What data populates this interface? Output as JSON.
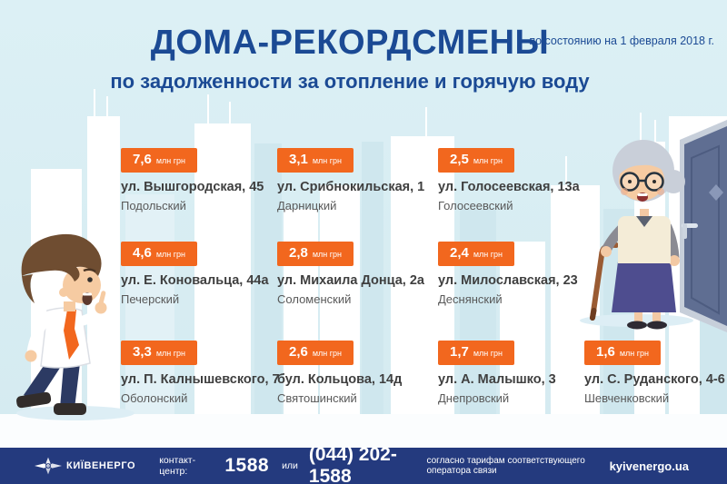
{
  "header": {
    "title": "ДОМА-РЕКОРДСМЕНЫ",
    "subtitle": "по задолженности за отопление и горячую воду",
    "date_note": "по состоянию на 1 февраля 2018 г."
  },
  "unit_label": "млн грн",
  "cards": [
    {
      "row": 0,
      "col": 0,
      "amount": "7,6",
      "address": "ул. Вышгородская, 45",
      "district": "Подольский"
    },
    {
      "row": 0,
      "col": 1,
      "amount": "3,1",
      "address": "ул. Срибнокильская, 1",
      "district": "Дарницкий"
    },
    {
      "row": 0,
      "col": 2,
      "amount": "2,5",
      "address": "ул. Голосеевская, 13а",
      "district": "Голосеевский"
    },
    {
      "row": 1,
      "col": 0,
      "amount": "4,6",
      "address": "ул. Е. Коновальца, 44а",
      "district": "Печерский"
    },
    {
      "row": 1,
      "col": 1,
      "amount": "2,8",
      "address": "ул. Михаила Донца, 2а",
      "district": "Соломенский"
    },
    {
      "row": 1,
      "col": 2,
      "amount": "2,4",
      "address": "ул. Милославская, 23",
      "district": "Деснянский"
    },
    {
      "row": 2,
      "col": 0,
      "amount": "3,3",
      "address": "ул. П. Калнышевского, 7",
      "district": "Оболонский"
    },
    {
      "row": 2,
      "col": 1,
      "amount": "2,6",
      "address": "бул. Кольцова, 14д",
      "district": "Святошинский"
    },
    {
      "row": 2,
      "col": 2,
      "amount": "1,7",
      "address": "ул. А. Малышко, 3",
      "district": "Днепровский"
    },
    {
      "row": 2,
      "col": 3,
      "amount": "1,6",
      "address": "ул. С. Руданского, 4-6",
      "district": "Шевченковский"
    }
  ],
  "footer": {
    "brand": "КИЇВЕНЕРГО",
    "contact_label": "контакт-центр:",
    "short_number": "1588",
    "or_label": "или",
    "phone": "(044) 202-1588",
    "tariff_note": "согласно тарифам соответствующего оператора связи",
    "website": "kyivenergo.ua"
  },
  "colors": {
    "accent_orange": "#f2671e",
    "title_navy": "#1b4a94",
    "footer_navy": "#243a7e",
    "sky": "#d8edf2"
  },
  "chart_data": {
    "type": "table",
    "title": "ДОМА-РЕКОРДСМЕНЫ по задолженности за отопление и горячую воду",
    "as_of": "по состоянию на 1 февраля 2018 г.",
    "unit": "млн грн",
    "items": [
      {
        "debt_mln_uah": 7.6,
        "address": "ул. Вышгородская, 45",
        "district": "Подольский"
      },
      {
        "debt_mln_uah": 3.1,
        "address": "ул. Срибнокильская, 1",
        "district": "Дарницкий"
      },
      {
        "debt_mln_uah": 2.5,
        "address": "ул. Голосеевская, 13а",
        "district": "Голосеевский"
      },
      {
        "debt_mln_uah": 4.6,
        "address": "ул. Е. Коновальца, 44а",
        "district": "Печерский"
      },
      {
        "debt_mln_uah": 2.8,
        "address": "ул. Михаила Донца, 2а",
        "district": "Соломенский"
      },
      {
        "debt_mln_uah": 2.4,
        "address": "ул. Милославская, 23",
        "district": "Деснянский"
      },
      {
        "debt_mln_uah": 3.3,
        "address": "ул. П. Калнышевского, 7",
        "district": "Оболонский"
      },
      {
        "debt_mln_uah": 2.6,
        "address": "бул. Кольцова, 14д",
        "district": "Святошинский"
      },
      {
        "debt_mln_uah": 1.7,
        "address": "ул. А. Малышко, 3",
        "district": "Днепровский"
      },
      {
        "debt_mln_uah": 1.6,
        "address": "ул. С. Руданского, 4-6",
        "district": "Шевченковский"
      }
    ]
  }
}
